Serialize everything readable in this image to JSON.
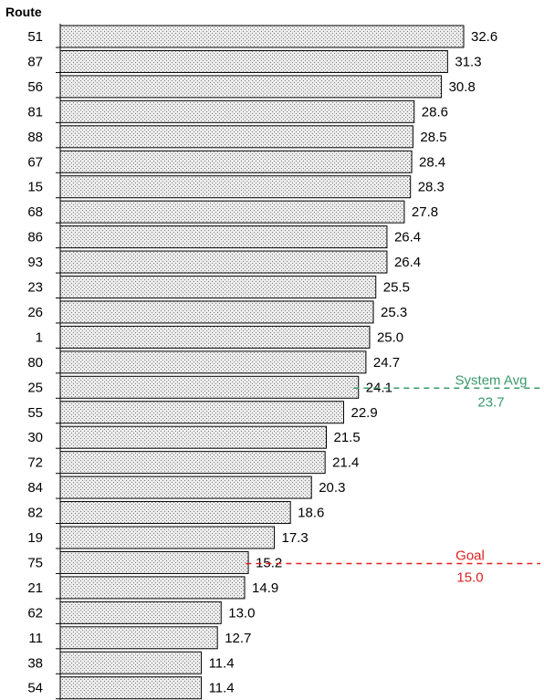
{
  "chart_data": {
    "type": "bar",
    "orientation": "horizontal",
    "ylabel": "Route",
    "categories": [
      "51",
      "87",
      "56",
      "81",
      "88",
      "67",
      "15",
      "68",
      "86",
      "93",
      "23",
      "26",
      "1",
      "80",
      "25",
      "55",
      "30",
      "72",
      "84",
      "82",
      "19",
      "75",
      "21",
      "62",
      "11",
      "38",
      "54"
    ],
    "values": [
      32.6,
      31.3,
      30.8,
      28.6,
      28.5,
      28.4,
      28.3,
      27.8,
      26.4,
      26.4,
      25.5,
      25.3,
      25.0,
      24.7,
      24.1,
      22.9,
      21.5,
      21.4,
      20.3,
      18.6,
      17.3,
      15.2,
      14.9,
      13.0,
      12.7,
      11.4,
      11.4
    ],
    "data_labels": [
      "32.6",
      "31.3",
      "30.8",
      "28.6",
      "28.5",
      "28.4",
      "28.3",
      "27.8",
      "26.4",
      "26.4",
      "25.5",
      "25.3",
      "25.0",
      "24.7",
      "24.1",
      "22.9",
      "21.5",
      "21.4",
      "20.3",
      "18.6",
      "17.3",
      "15.2",
      "14.9",
      "13.0",
      "12.7",
      "11.4",
      "11.4"
    ],
    "xlim": [
      0,
      32.6
    ],
    "grid": false,
    "bar_fill": "dotted",
    "colors": {
      "bar_fill": "#ececec",
      "bar_dot": "#7a7a7a",
      "bar_stroke": "#000000",
      "system_avg": "#3a9a6a",
      "goal": "#e02020"
    },
    "reference_lines": [
      {
        "name": "System Avg",
        "value": 23.7,
        "label": "System Avg",
        "value_label": "23.7",
        "color": "#3a9a6a"
      },
      {
        "name": "Goal",
        "value": 15.0,
        "label": "Goal",
        "value_label": "15.0",
        "color": "#e02020"
      }
    ]
  }
}
